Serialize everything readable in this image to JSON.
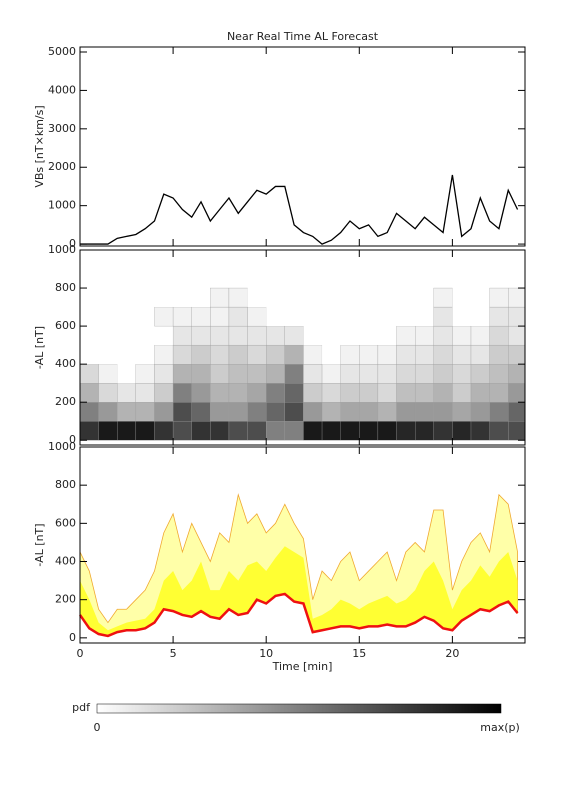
{
  "chart_data": [
    {
      "type": "line",
      "title": "Near Real Time AL Forecast",
      "ylabel": "VBs [nT×km/s]",
      "x": [
        0,
        0.5,
        1,
        1.5,
        2,
        2.5,
        3,
        3.5,
        4,
        4.5,
        5,
        5.5,
        6,
        6.5,
        7,
        7.5,
        8,
        8.5,
        9,
        9.5,
        10,
        10.5,
        11,
        11.5,
        12,
        12.5,
        13,
        13.5,
        14,
        14.5,
        15,
        15.5,
        16,
        16.5,
        17,
        17.5,
        18,
        18.5,
        19,
        19.5,
        20,
        20.5,
        21,
        21.5,
        22,
        22.5,
        23,
        23.5
      ],
      "values": [
        0,
        0,
        0,
        0,
        150,
        200,
        250,
        400,
        600,
        1300,
        1200,
        900,
        700,
        1100,
        600,
        900,
        1200,
        800,
        1100,
        1400,
        1300,
        1500,
        1500,
        500,
        300,
        200,
        0,
        100,
        300,
        600,
        400,
        500,
        200,
        300,
        800,
        600,
        400,
        700,
        500,
        300,
        1800,
        200,
        400,
        1200,
        600,
        400,
        1400,
        900
      ],
      "color": "#000000",
      "xlim": [
        0,
        23.9
      ],
      "ylim": [
        -50,
        5130
      ],
      "xticks": [
        0,
        5,
        10,
        15,
        20
      ],
      "yticks": [
        0,
        1000,
        2000,
        3000,
        4000,
        5000
      ]
    },
    {
      "type": "heatmap",
      "ylabel": "-AL [nT]",
      "x_edges": [
        0,
        1,
        2,
        3,
        4,
        5,
        6,
        7,
        8,
        9,
        10,
        11,
        12,
        13,
        14,
        15,
        16,
        17,
        18,
        19,
        20,
        21,
        22,
        23,
        23.9
      ],
      "y_edges": [
        0,
        100,
        200,
        300,
        400,
        500,
        600,
        700,
        800
      ],
      "values": [
        [
          0.8,
          0.5,
          0.3,
          0.15,
          0,
          0,
          0,
          0
        ],
        [
          0.9,
          0.4,
          0.15,
          0.05,
          0,
          0,
          0,
          0
        ],
        [
          0.9,
          0.3,
          0.1,
          0,
          0,
          0,
          0,
          0
        ],
        [
          0.9,
          0.3,
          0.1,
          0.05,
          0,
          0,
          0,
          0
        ],
        [
          0.8,
          0.4,
          0.2,
          0.1,
          0.05,
          0,
          0.05,
          0
        ],
        [
          0.7,
          0.7,
          0.5,
          0.3,
          0.15,
          0.1,
          0.05,
          0
        ],
        [
          0.8,
          0.6,
          0.4,
          0.3,
          0.2,
          0.1,
          0.05,
          0
        ],
        [
          0.8,
          0.4,
          0.3,
          0.2,
          0.15,
          0.1,
          0.05,
          0.05
        ],
        [
          0.7,
          0.4,
          0.3,
          0.25,
          0.2,
          0.1,
          0.1,
          0.05
        ],
        [
          0.7,
          0.5,
          0.35,
          0.25,
          0.15,
          0.1,
          0.05,
          0
        ],
        [
          0.5,
          0.6,
          0.5,
          0.3,
          0.2,
          0.1,
          0,
          0
        ],
        [
          0.5,
          0.7,
          0.6,
          0.5,
          0.3,
          0.1,
          0,
          0
        ],
        [
          0.9,
          0.4,
          0.2,
          0.1,
          0.05,
          0,
          0,
          0
        ],
        [
          0.9,
          0.3,
          0.15,
          0.05,
          0,
          0,
          0,
          0
        ],
        [
          0.9,
          0.35,
          0.2,
          0.1,
          0.05,
          0,
          0,
          0
        ],
        [
          0.9,
          0.35,
          0.2,
          0.1,
          0.05,
          0,
          0,
          0
        ],
        [
          0.9,
          0.3,
          0.15,
          0.1,
          0.05,
          0,
          0,
          0
        ],
        [
          0.85,
          0.4,
          0.25,
          0.15,
          0.1,
          0.05,
          0,
          0
        ],
        [
          0.85,
          0.4,
          0.25,
          0.15,
          0.1,
          0.05,
          0,
          0
        ],
        [
          0.8,
          0.4,
          0.3,
          0.2,
          0.15,
          0.1,
          0.1,
          0.05
        ],
        [
          0.85,
          0.35,
          0.2,
          0.15,
          0.1,
          0.05,
          0,
          0
        ],
        [
          0.8,
          0.4,
          0.3,
          0.2,
          0.1,
          0.05,
          0,
          0
        ],
        [
          0.7,
          0.5,
          0.3,
          0.25,
          0.2,
          0.15,
          0.1,
          0.05
        ],
        [
          0.7,
          0.6,
          0.4,
          0.3,
          0.2,
          0.1,
          0.1,
          0.05
        ]
      ],
      "xlim": [
        0,
        23.9
      ],
      "ylim": [
        -25,
        1000
      ],
      "xticks": [
        0,
        5,
        10,
        15,
        20
      ],
      "yticks": [
        0,
        200,
        400,
        600,
        800,
        1000
      ]
    },
    {
      "type": "band",
      "ylabel": "-AL [nT]",
      "xlabel": "Time [min]",
      "x": [
        0,
        0.5,
        1,
        1.5,
        2,
        2.5,
        3,
        3.5,
        4,
        4.5,
        5,
        5.5,
        6,
        6.5,
        7,
        7.5,
        8,
        8.5,
        9,
        9.5,
        10,
        10.5,
        11,
        11.5,
        12,
        12.5,
        13,
        13.5,
        14,
        14.5,
        15,
        15.5,
        16,
        16.5,
        17,
        17.5,
        18,
        18.5,
        19,
        19.5,
        20,
        20.5,
        21,
        21.5,
        22,
        22.5,
        23,
        23.5
      ],
      "series": [
        {
          "color": "#ee1111",
          "values": [
            120,
            50,
            20,
            10,
            30,
            40,
            40,
            50,
            80,
            150,
            140,
            120,
            110,
            140,
            110,
            100,
            150,
            120,
            130,
            200,
            180,
            220,
            230,
            190,
            180,
            30,
            40,
            50,
            60,
            60,
            50,
            60,
            60,
            70,
            60,
            60,
            80,
            110,
            90,
            50,
            40,
            90,
            120,
            150,
            140,
            170,
            190,
            130
          ]
        },
        {
          "color": "#ffff33",
          "values": [
            300,
            200,
            80,
            40,
            60,
            80,
            90,
            100,
            150,
            300,
            350,
            250,
            300,
            400,
            250,
            250,
            350,
            300,
            380,
            400,
            350,
            420,
            480,
            450,
            420,
            100,
            120,
            150,
            200,
            180,
            150,
            180,
            200,
            220,
            180,
            200,
            250,
            350,
            400,
            300,
            150,
            250,
            300,
            380,
            320,
            400,
            450,
            300
          ]
        },
        {
          "color": "#ffffa8",
          "edge_color": "#f0a830",
          "values": [
            450,
            350,
            150,
            80,
            150,
            150,
            200,
            250,
            350,
            550,
            650,
            450,
            600,
            500,
            400,
            550,
            500,
            750,
            600,
            650,
            550,
            600,
            700,
            600,
            520,
            200,
            350,
            300,
            400,
            450,
            300,
            350,
            400,
            450,
            300,
            450,
            500,
            450,
            670,
            670,
            250,
            400,
            500,
            550,
            450,
            750,
            700,
            450
          ]
        }
      ],
      "xlim": [
        0,
        23.9
      ],
      "ylim": [
        -27,
        1000
      ],
      "xticks": [
        0,
        5,
        10,
        15,
        20
      ],
      "yticks": [
        0,
        200,
        400,
        600,
        800,
        1000
      ]
    }
  ],
  "colorbar": {
    "label": "pdf",
    "min_label": "0",
    "max_label": "max(p)"
  }
}
